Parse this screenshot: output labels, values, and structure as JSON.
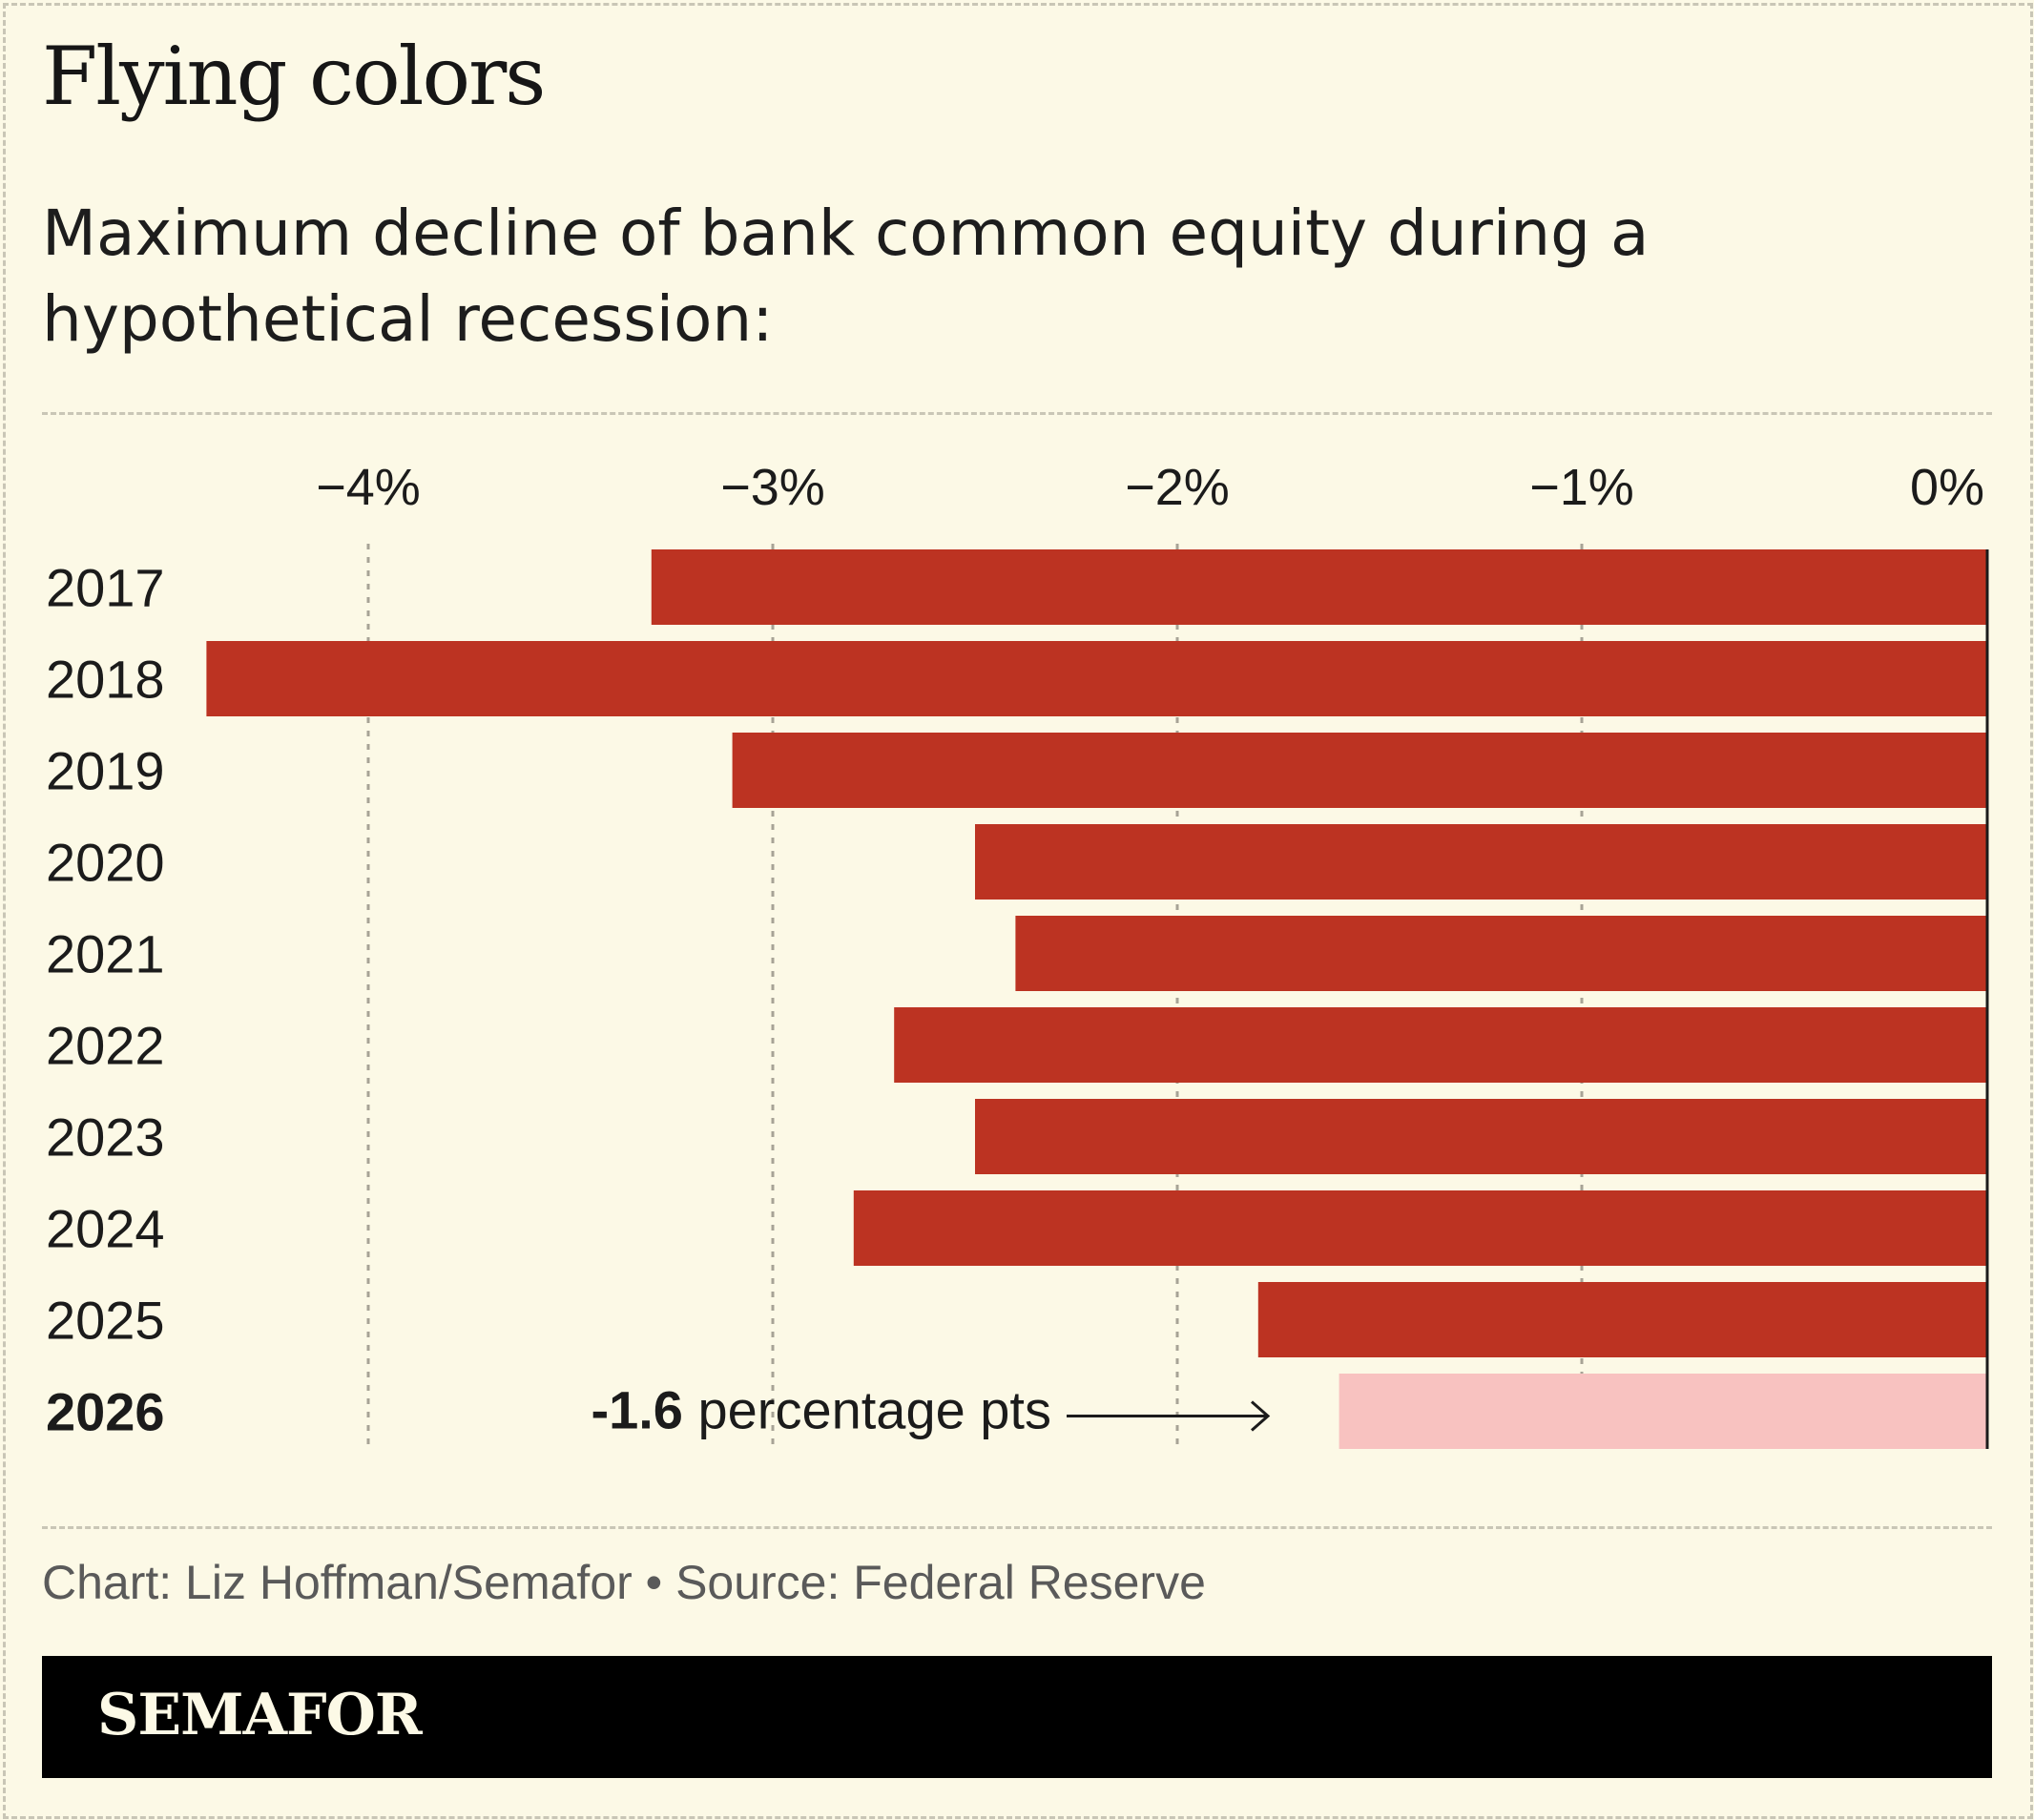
{
  "title": "Flying colors",
  "subtitle": "Maximum decline of bank common equity during a hypothetical recession:",
  "chart_data": {
    "type": "bar",
    "orientation": "horizontal",
    "categories": [
      "2017",
      "2018",
      "2019",
      "2020",
      "2021",
      "2022",
      "2023",
      "2024",
      "2025",
      "2026"
    ],
    "values": [
      -3.3,
      -4.4,
      -3.1,
      -2.5,
      -2.4,
      -2.7,
      -2.5,
      -2.8,
      -1.8,
      -1.6
    ],
    "highlight_category": "2026",
    "xlim": [
      -4.4,
      0
    ],
    "xticks": [
      -4,
      -3,
      -2,
      -1,
      0
    ],
    "xtick_labels": [
      "−4%",
      "−3%",
      "−2%",
      "−1%",
      "0%"
    ],
    "grid": true,
    "colors": {
      "bar": "#bc3322",
      "highlight": "#f8c2c0",
      "gridline": "#a7a396"
    },
    "annotation": {
      "value": "-1.6",
      "text": " percentage pts",
      "arrow": "right-arrow"
    }
  },
  "credit": "Chart: Liz Hoffman/Semafor • Source: Federal Reserve",
  "brand": "SEMAFOR"
}
